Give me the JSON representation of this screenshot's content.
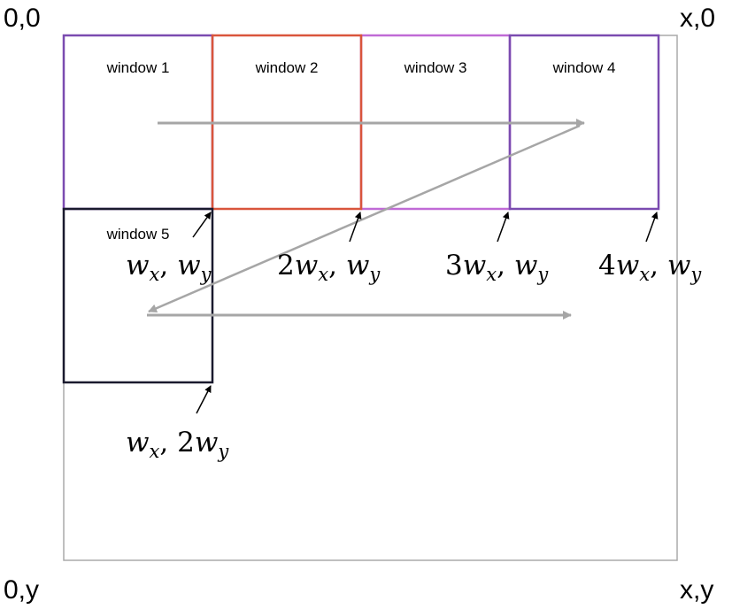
{
  "diagram": {
    "corners": {
      "top_left": "0,0",
      "top_right": "x,0",
      "bottom_left": "0,y",
      "bottom_right": "x,y"
    },
    "windows": [
      {
        "label": "window 1",
        "color": "#7b4bb0"
      },
      {
        "label": "window 2",
        "color": "#d9553c"
      },
      {
        "label": "window 3",
        "color": "#c06ad6"
      },
      {
        "label": "window 4",
        "color": "#7b4bb0"
      },
      {
        "label": "window 5",
        "color": "#1a1a2e"
      }
    ],
    "coordinates": [
      {
        "coef_x": "",
        "var_x": "w",
        "sub_x": "x",
        "sep": ", ",
        "coef_y": "",
        "var_y": "w",
        "sub_y": "y"
      },
      {
        "coef_x": "2",
        "var_x": "w",
        "sub_x": "x",
        "sep": ", ",
        "coef_y": "",
        "var_y": "w",
        "sub_y": "y"
      },
      {
        "coef_x": "3",
        "var_x": "w",
        "sub_x": "x",
        "sep": ", ",
        "coef_y": "",
        "var_y": "w",
        "sub_y": "y"
      },
      {
        "coef_x": "4",
        "var_x": "w",
        "sub_x": "x",
        "sep": ", ",
        "coef_y": "",
        "var_y": "w",
        "sub_y": "y"
      },
      {
        "coef_x": "",
        "var_x": "w",
        "sub_x": "x",
        "sep": ", ",
        "coef_y": "2",
        "var_y": "w",
        "sub_y": "y"
      }
    ],
    "colors": {
      "canvas_border": "#aaaaaa",
      "scan_arrow": "#a6a6a6",
      "pointer_arrow": "#000000"
    }
  }
}
